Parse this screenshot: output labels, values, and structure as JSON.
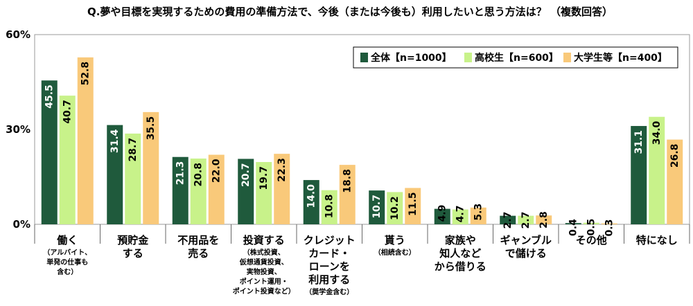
{
  "chart_data": {
    "type": "bar",
    "title": "Q.夢や目標を実現するための費用の準備方法で、今後（または今後も）利用したいと思う方法は？ （複数回答）",
    "y_ticks": [
      "60%",
      "30%",
      "0%"
    ],
    "ylim": [
      0,
      60
    ],
    "grid": false,
    "legend_position": "top-right",
    "categories": [
      {
        "main": [
          "働く"
        ],
        "sub": [
          "（アルバイト、",
          "単発の仕事も",
          "含む）"
        ]
      },
      {
        "main": [
          "預貯金",
          "する"
        ],
        "sub": []
      },
      {
        "main": [
          "不用品を",
          "売る"
        ],
        "sub": []
      },
      {
        "main": [
          "投資する"
        ],
        "sub": [
          "（株式投資、",
          "仮想通貨投資、",
          "実物投資、",
          "ポイント運用・",
          "ポイント投資など）"
        ]
      },
      {
        "main": [
          "クレジット",
          "カード・",
          "ローンを",
          "利用する"
        ],
        "sub": [
          "（奨学金含む）"
        ]
      },
      {
        "main": [
          "貰う"
        ],
        "sub": [
          "（相続含む）"
        ]
      },
      {
        "main": [
          "家族や",
          "知人など",
          "から借りる"
        ],
        "sub": []
      },
      {
        "main": [
          "ギャンブル",
          "で儲ける"
        ],
        "sub": []
      },
      {
        "main": [
          "その他"
        ],
        "sub": []
      },
      {
        "main": [
          "特になし"
        ],
        "sub": []
      }
    ],
    "series": [
      {
        "name": "全体【n=1000】",
        "color": "#1f5a3c",
        "label_color": "#ffffff",
        "values": [
          45.5,
          31.4,
          21.3,
          20.7,
          14.0,
          10.7,
          4.9,
          2.7,
          0.4,
          31.1
        ],
        "labels": [
          "45.5",
          "31.4",
          "21.3",
          "20.7",
          "14.0",
          "10.7",
          "4.9",
          "2.7",
          "0.4",
          "31.1"
        ]
      },
      {
        "name": "高校生【n=600】",
        "color": "#c8f28a",
        "label_color": "#000000",
        "values": [
          40.7,
          28.7,
          20.8,
          19.7,
          10.8,
          10.2,
          4.7,
          2.7,
          0.5,
          34.0
        ],
        "labels": [
          "40.7",
          "28.7",
          "20.8",
          "19.7",
          "10.8",
          "10.2",
          "4.7",
          "2.7",
          "0.5",
          "34.0"
        ]
      },
      {
        "name": "大学生等【n=400】",
        "color": "#f9c97a",
        "label_color": "#000000",
        "values": [
          52.8,
          35.5,
          22.0,
          22.3,
          18.8,
          11.5,
          5.3,
          2.8,
          0.3,
          26.8
        ],
        "labels": [
          "52.8",
          "35.5",
          "22.0",
          "22.3",
          "18.8",
          "11.5",
          "5.3",
          "2.8",
          "0.3",
          "26.8"
        ]
      }
    ]
  }
}
